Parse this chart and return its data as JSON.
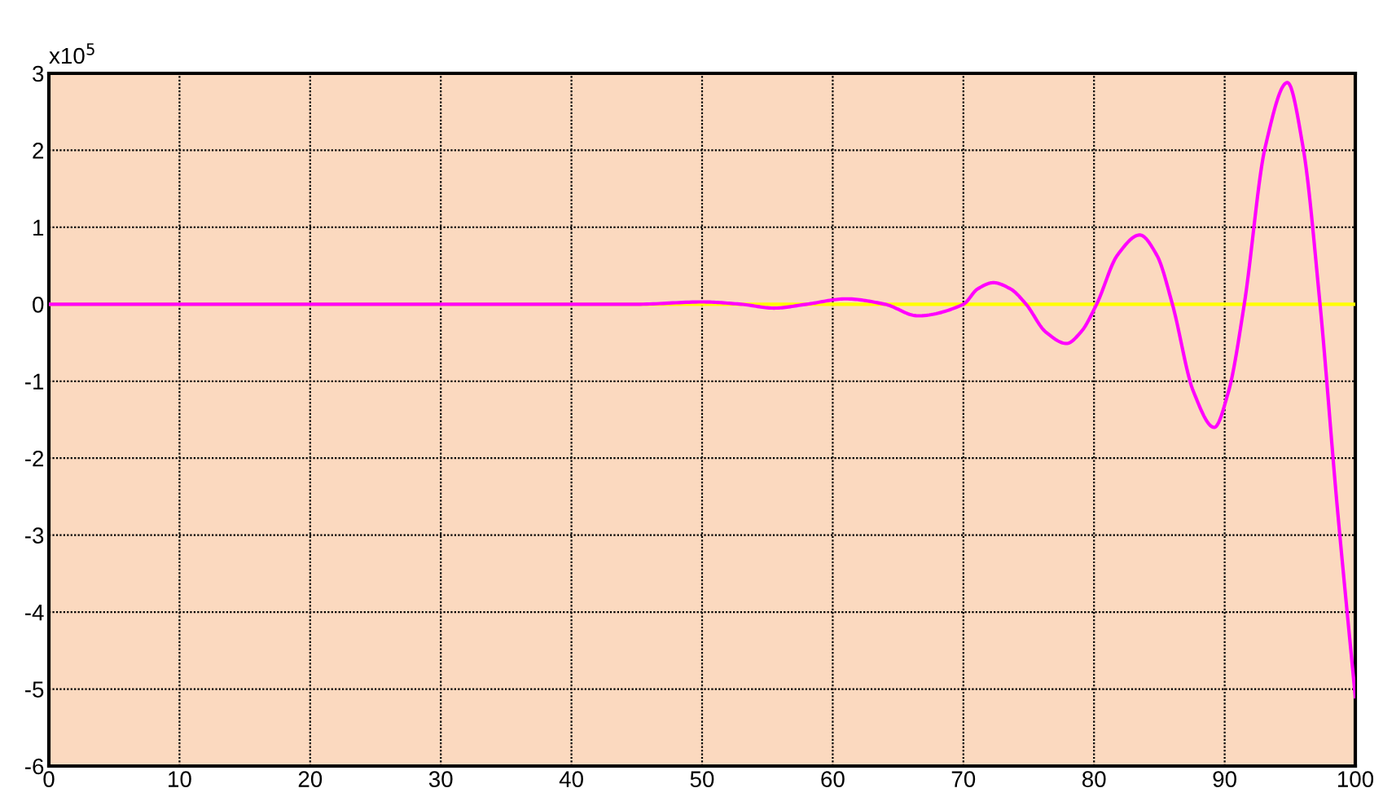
{
  "chart_data": {
    "type": "line",
    "annotations": [
      "x10$^{5}$"
    ],
    "xlim": [
      0,
      100
    ],
    "xticks": [
      0,
      10,
      20,
      30,
      40,
      50,
      60,
      70,
      80,
      90,
      100
    ],
    "ylim": [
      -6,
      3
    ],
    "yticks": [
      -6,
      -5,
      -4,
      -3,
      -2,
      -1,
      0,
      1,
      2,
      3
    ],
    "grid": true,
    "line_style": "solid",
    "marker": "none",
    "series": [
      {
        "color": "#ffff00",
        "x": [
          0,
          100
        ],
        "values": [
          0,
          0
        ]
      },
      {
        "color": "#ff00ff",
        "x": [
          0,
          10,
          20,
          30,
          40,
          45,
          50,
          53,
          55.5,
          58,
          61,
          64,
          66.5,
          70,
          71.1,
          72.3,
          73.6,
          74.8,
          76.3,
          77.9,
          79.0,
          80.2,
          81.8,
          83.5,
          84.8,
          86.0,
          87.6,
          89.2,
          90.3,
          91.5,
          93.1,
          94.8,
          96.0,
          97.3,
          98.6,
          100
        ],
        "values": [
          0,
          0,
          0,
          0,
          0,
          0,
          0.03,
          0,
          -0.05,
          0,
          0.07,
          0,
          -0.15,
          0,
          0.2,
          0.28,
          0.2,
          0,
          -0.36,
          -0.51,
          -0.36,
          0,
          0.64,
          0.9,
          0.64,
          0,
          -1.13,
          -1.6,
          -1.13,
          0,
          2.04,
          2.88,
          2.04,
          0,
          -2.6,
          -5.1
        ]
      }
    ]
  }
}
